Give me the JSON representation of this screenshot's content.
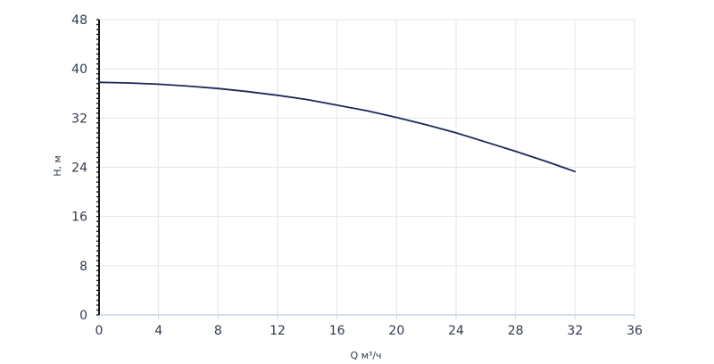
{
  "chart_data": {
    "type": "line",
    "xlabel": "Q м³/ч",
    "ylabel": "H, м",
    "xlim": [
      0,
      36
    ],
    "ylim": [
      0,
      48
    ],
    "x_ticks": [
      0,
      4,
      8,
      12,
      16,
      20,
      24,
      28,
      32,
      36
    ],
    "y_ticks": [
      0,
      8,
      16,
      24,
      32,
      40,
      48
    ],
    "grid": true,
    "colors": {
      "line": "#1b2a56",
      "axis": "#1a1a1a",
      "grid": "#e6e6e6",
      "x_axis": "#c9d3e8"
    },
    "series": [
      {
        "x": [
          0,
          2,
          4,
          6,
          8,
          10,
          12,
          14,
          16,
          18,
          20,
          22,
          24,
          26,
          28,
          30,
          32
        ],
        "y": [
          37.8,
          37.7,
          37.5,
          37.2,
          36.8,
          36.3,
          35.7,
          35.0,
          34.1,
          33.2,
          32.1,
          30.9,
          29.6,
          28.1,
          26.6,
          25.0,
          23.3
        ]
      }
    ]
  }
}
